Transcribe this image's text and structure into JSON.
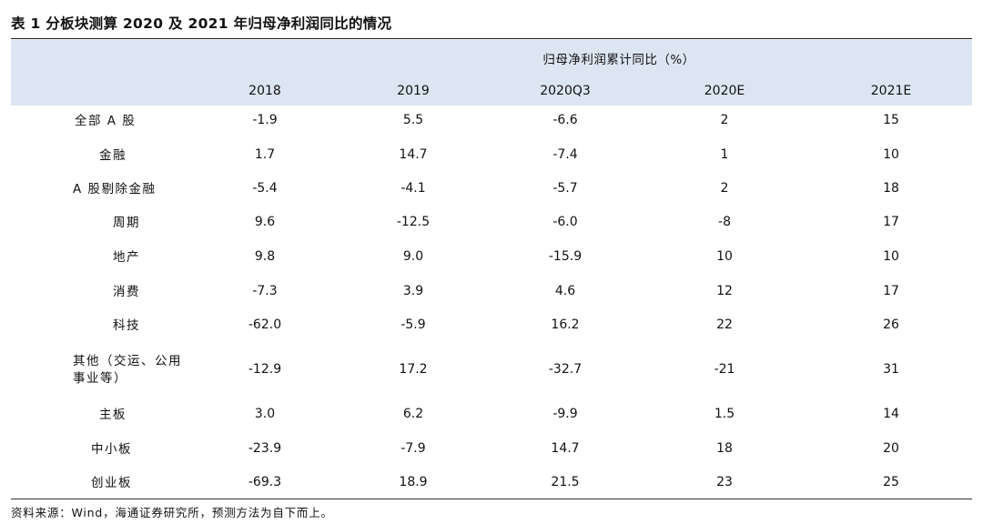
{
  "title": "表 1  分板块测算 2020 及 2021 年归母净利润同比的情况",
  "header": {
    "group_label": "归母净利润累计同比（%）",
    "columns": [
      "2018",
      "2019",
      "2020Q3",
      "2020E",
      "2021E"
    ]
  },
  "rows": [
    {
      "label": "全部 A 股",
      "values": [
        "-1.9",
        "5.5",
        "-6.6",
        "2",
        "15"
      ]
    },
    {
      "label": "金融",
      "values": [
        "1.7",
        "14.7",
        "-7.4",
        "1",
        "10"
      ]
    },
    {
      "label": "A 股剔除金融",
      "values": [
        "-5.4",
        "-4.1",
        "-5.7",
        "2",
        "18"
      ]
    },
    {
      "label": "周期",
      "values": [
        "9.6",
        "-12.5",
        "-6.0",
        "-8",
        "17"
      ]
    },
    {
      "label": "地产",
      "values": [
        "9.8",
        "9.0",
        "-15.9",
        "10",
        "10"
      ]
    },
    {
      "label": "消费",
      "values": [
        "-7.3",
        "3.9",
        "4.6",
        "12",
        "17"
      ]
    },
    {
      "label": "科技",
      "values": [
        "-62.0",
        "-5.9",
        "16.2",
        "22",
        "26"
      ]
    },
    {
      "label_line1": "其他（交运、公用",
      "label_line2": "事业等）",
      "values": [
        "-12.9",
        "17.2",
        "-32.7",
        "-21",
        "31"
      ]
    },
    {
      "label": "主板",
      "values": [
        "3.0",
        "6.2",
        "-9.9",
        "1.5",
        "14"
      ]
    },
    {
      "label": "中小板",
      "values": [
        "-23.9",
        "-7.9",
        "14.7",
        "18",
        "20"
      ]
    },
    {
      "label": "创业板",
      "values": [
        "-69.3",
        "18.9",
        "21.5",
        "23",
        "25"
      ]
    }
  ],
  "source": "资料来源：Wind，海通证券研究所，预测方法为自下而上。"
}
